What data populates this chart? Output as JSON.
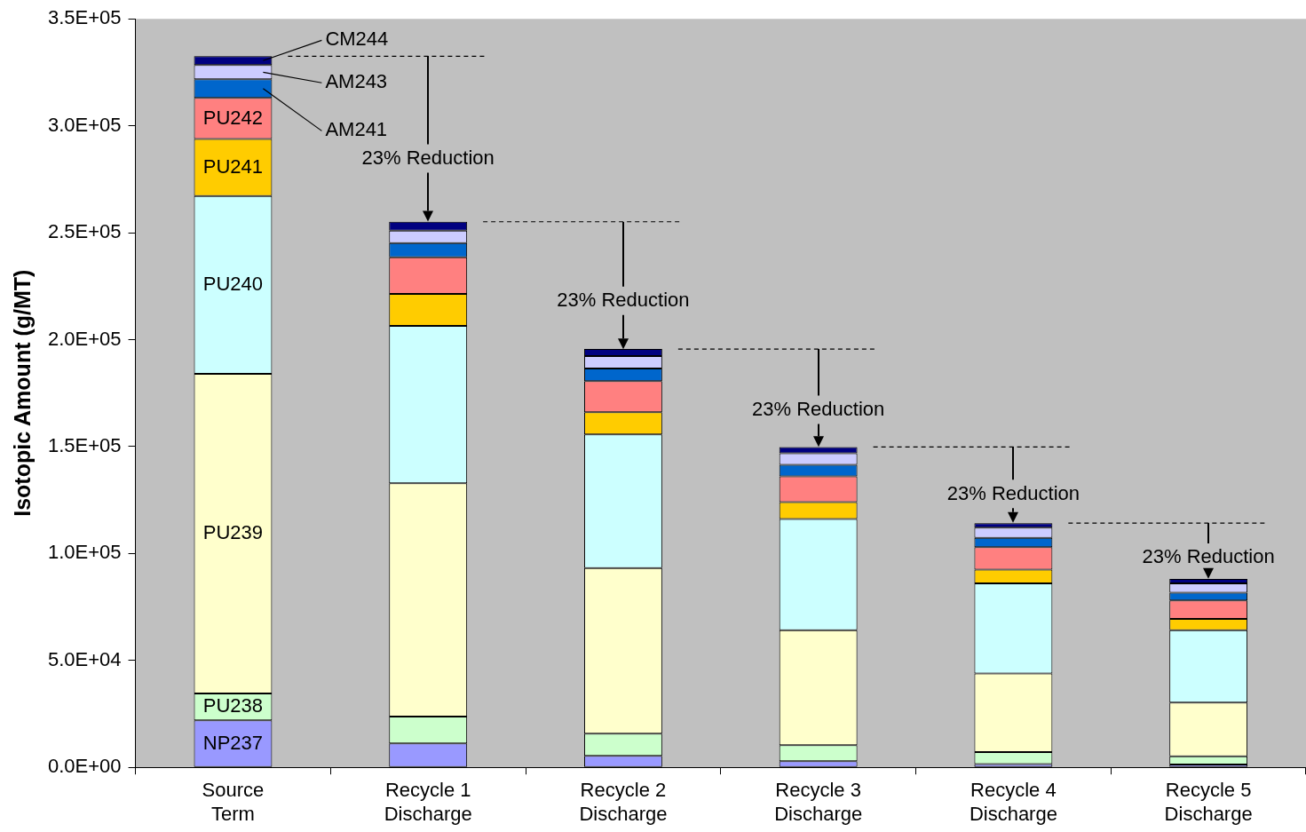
{
  "chart_data": {
    "type": "bar",
    "stacked": true,
    "ylabel": "Isotopic Amount (g/MT)",
    "categories": [
      "Source Term",
      "Recycle 1 Discharge",
      "Recycle 2 Discharge",
      "Recycle 3 Discharge",
      "Recycle 4 Discharge",
      "Recycle 5 Discharge"
    ],
    "ylim": [
      0,
      350000
    ],
    "yticks": [
      {
        "value": 0,
        "label": "0.0E+00"
      },
      {
        "value": 50000,
        "label": "5.0E+04"
      },
      {
        "value": 100000,
        "label": "1.0E+05"
      },
      {
        "value": 150000,
        "label": "1.5E+05"
      },
      {
        "value": 200000,
        "label": "2.0E+05"
      },
      {
        "value": 250000,
        "label": "2.5E+05"
      },
      {
        "value": 300000,
        "label": "3.0E+05"
      },
      {
        "value": 350000,
        "label": "3.5E+05"
      }
    ],
    "series": [
      {
        "name": "NP237",
        "color": "#9999ff",
        "values": [
          22000,
          11200,
          5400,
          2900,
          1500,
          1300
        ]
      },
      {
        "name": "PU238",
        "color": "#ccffcc",
        "values": [
          12500,
          12500,
          10400,
          7500,
          5600,
          3900
        ]
      },
      {
        "name": "PU239",
        "color": "#ffffcc",
        "values": [
          149500,
          109100,
          77400,
          53700,
          36800,
          25100
        ]
      },
      {
        "name": "PU240",
        "color": "#ccffff",
        "values": [
          83200,
          73600,
          62500,
          52000,
          42100,
          33800
        ]
      },
      {
        "name": "PU241",
        "color": "#ffcc00",
        "values": [
          26600,
          15000,
          10400,
          7900,
          6500,
          5300
        ]
      },
      {
        "name": "PU242",
        "color": "#ff8080",
        "values": [
          19200,
          17100,
          14500,
          12100,
          10400,
          8600
        ]
      },
      {
        "name": "AM241",
        "color": "#0066cc",
        "values": [
          8700,
          6600,
          5900,
          5400,
          4400,
          3700
        ]
      },
      {
        "name": "AM243",
        "color": "#ccccff",
        "values": [
          6700,
          5900,
          5800,
          5400,
          4800,
          4300
        ]
      },
      {
        "name": "CM244",
        "color": "#000080",
        "values": [
          4100,
          4100,
          3300,
          2900,
          2100,
          2100
        ]
      }
    ],
    "annotations": [
      {
        "text": "23% Reduction",
        "x": "Recycle 1 Discharge",
        "y": 255100
      },
      {
        "text": "23% Reduction",
        "x": "Recycle 2 Discharge",
        "y": 195600
      },
      {
        "text": "23% Reduction",
        "x": "Recycle 3 Discharge",
        "y": 149800
      },
      {
        "text": "23% Reduction",
        "x": "Recycle 4 Discharge",
        "y": 114200
      },
      {
        "text": "23% Reduction",
        "x": "Recycle 5 Discharge",
        "y": 88100
      }
    ],
    "ref_lines": [
      {
        "axis": "y",
        "value": 332500,
        "color": "#000000",
        "line_style": "dashed"
      },
      {
        "axis": "y",
        "value": 255100,
        "color": "#000000",
        "line_style": "dashed"
      },
      {
        "axis": "y",
        "value": 195600,
        "color": "#000000",
        "line_style": "dashed"
      },
      {
        "axis": "y",
        "value": 149800,
        "color": "#000000",
        "line_style": "dashed"
      },
      {
        "axis": "y",
        "value": 114200,
        "color": "#000000",
        "line_style": "dashed"
      }
    ],
    "legend": "left"
  }
}
